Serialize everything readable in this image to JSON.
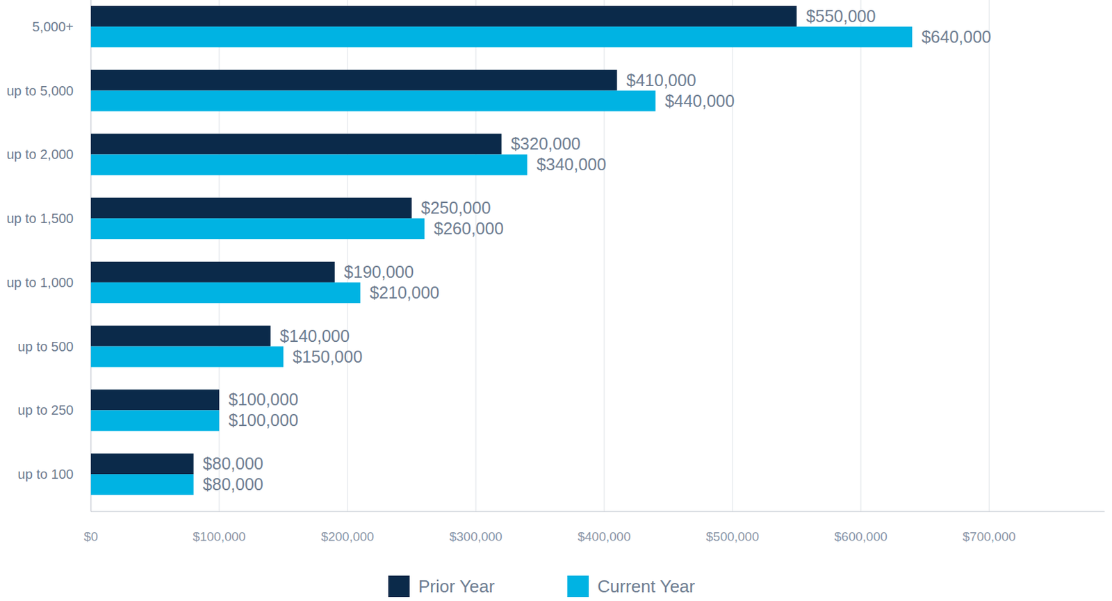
{
  "chart_data": {
    "type": "bar",
    "orientation": "horizontal",
    "categories": [
      "5,000+",
      "up to 5,000",
      "up to 2,000",
      "up to 1,500",
      "up to 1,000",
      "up to 500",
      "up to 250",
      "up to 100"
    ],
    "series": [
      {
        "name": "Prior Year",
        "color": "#0b2a4a",
        "values": [
          550000,
          410000,
          320000,
          250000,
          190000,
          140000,
          100000,
          80000
        ],
        "value_labels": [
          "$550,000",
          "$410,000",
          "$320,000",
          "$250,000",
          "$190,000",
          "$140,000",
          "$100,000",
          "$80,000"
        ]
      },
      {
        "name": "Current Year",
        "color": "#00b3e3",
        "values": [
          640000,
          440000,
          340000,
          260000,
          210000,
          150000,
          100000,
          80000
        ],
        "value_labels": [
          "$640,000",
          "$440,000",
          "$340,000",
          "$260,000",
          "$210,000",
          "$150,000",
          "$100,000",
          "$80,000"
        ]
      }
    ],
    "xlim": [
      0,
      790000
    ],
    "xticks": [
      {
        "value": 0,
        "label": "$0"
      },
      {
        "value": 100000,
        "label": "$100,000"
      },
      {
        "value": 200000,
        "label": "$200,000"
      },
      {
        "value": 300000,
        "label": "$300,000"
      },
      {
        "value": 400000,
        "label": "$400,000"
      },
      {
        "value": 500000,
        "label": "$500,000"
      },
      {
        "value": 600000,
        "label": "$600,000"
      },
      {
        "value": 700000,
        "label": "$700,000"
      }
    ],
    "grid": true,
    "data_labels": true,
    "legend": "bottom"
  }
}
